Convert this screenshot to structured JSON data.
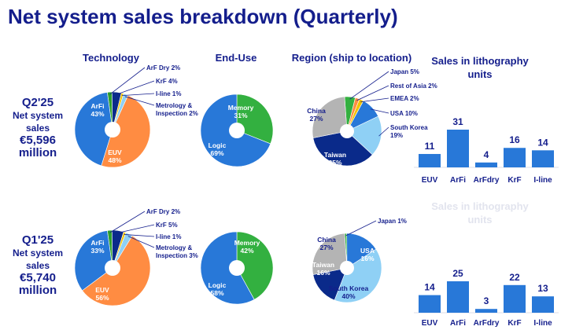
{
  "title": "Net system sales breakdown (Quarterly)",
  "column_headers": {
    "technology": "Technology",
    "end_use": "End-Use",
    "region": "Region (ship to location)",
    "litho_line1": "Sales in lithography",
    "litho_line2": "units"
  },
  "rows": [
    {
      "quarter": "Q2'25",
      "net_label": "Net system sales",
      "value": "€5,596 million"
    },
    {
      "quarter": "Q1'25",
      "net_label": "Net system sales",
      "value": "€5,740 million"
    }
  ],
  "faded_repeat_header": {
    "line1": "Sales in lithography",
    "line2": "units"
  },
  "colors": {
    "title": "#141e8c",
    "euv": "#ff8c42",
    "arfi": "#2878d8",
    "arf_dry": "#2ca02c",
    "krf": "#0a2a8a",
    "iline": "#f2c200",
    "metrology": "#8fd0f5",
    "memory": "#33b040",
    "logic": "#2878d8",
    "japan": "#33b040",
    "rest_of_asia": "#ff8c42",
    "emea": "#f2c200",
    "usa": "#2878d8",
    "south_korea": "#8fd0f5",
    "taiwan": "#0a2a8a",
    "china": "#b4b4b4",
    "bar": "#2878d8"
  },
  "chart_data": [
    {
      "type": "pie",
      "id": "tech_q2",
      "title": "Technology",
      "quarter": "Q2'25",
      "slices": [
        {
          "name": "ArF Dry",
          "value": 2,
          "label": "ArF Dry 2%",
          "color_key": "arf_dry",
          "inside": false
        },
        {
          "name": "KrF",
          "value": 4,
          "label": "KrF 4%",
          "color_key": "krf",
          "inside": false
        },
        {
          "name": "I-line",
          "value": 1,
          "label": "I-line 1%",
          "color_key": "iline",
          "inside": false
        },
        {
          "name": "Metrology & Inspection",
          "value": 2,
          "label": "Metrology &",
          "label2": "Inspection 2%",
          "color_key": "metrology",
          "inside": false
        },
        {
          "name": "EUV",
          "value": 48,
          "label": "EUV",
          "label2": "48%",
          "color_key": "euv",
          "inside": true
        },
        {
          "name": "ArFi",
          "value": 43,
          "label": "ArFi",
          "label2": "43%",
          "color_key": "arfi",
          "inside": true
        }
      ]
    },
    {
      "type": "pie",
      "id": "enduse_q2",
      "title": "End-Use",
      "quarter": "Q2'25",
      "slices": [
        {
          "name": "Memory",
          "value": 31,
          "label": "Memory",
          "label2": "31%",
          "color_key": "memory",
          "inside": true
        },
        {
          "name": "Logic",
          "value": 69,
          "label": "Logic",
          "label2": "69%",
          "color_key": "logic",
          "inside": true
        }
      ]
    },
    {
      "type": "pie",
      "id": "region_q2",
      "title": "Region (ship to location)",
      "quarter": "Q2'25",
      "slices": [
        {
          "name": "Japan",
          "value": 5,
          "label": "Japan 5%",
          "color_key": "japan",
          "inside": false
        },
        {
          "name": "Rest of Asia",
          "value": 2,
          "label": "Rest of Asia 2%",
          "color_key": "rest_of_asia",
          "inside": false
        },
        {
          "name": "EMEA",
          "value": 2,
          "label": "EMEA 2%",
          "color_key": "emea",
          "inside": false
        },
        {
          "name": "USA",
          "value": 10,
          "label": "USA 10%",
          "color_key": "usa",
          "inside": false
        },
        {
          "name": "South Korea",
          "value": 19,
          "label": "South Korea",
          "label2": "19%",
          "color_key": "south_korea",
          "inside": false
        },
        {
          "name": "Taiwan",
          "value": 35,
          "label": "Taiwan",
          "label2": "35%",
          "color_key": "taiwan",
          "inside": true
        },
        {
          "name": "China",
          "value": 27,
          "label": "China",
          "label2": "27%",
          "color_key": "china",
          "inside": true
        }
      ]
    },
    {
      "type": "bar",
      "id": "litho_q2",
      "title": "Sales in lithography units",
      "quarter": "Q2'25",
      "categories": [
        "EUV",
        "ArFi",
        "ArFdry",
        "KrF",
        "I-line"
      ],
      "values": [
        11,
        31,
        4,
        16,
        14
      ]
    },
    {
      "type": "pie",
      "id": "tech_q1",
      "title": "Technology",
      "quarter": "Q1'25",
      "slices": [
        {
          "name": "ArF Dry",
          "value": 2,
          "label": "ArF Dry 2%",
          "color_key": "arf_dry",
          "inside": false
        },
        {
          "name": "KrF",
          "value": 5,
          "label": "KrF 5%",
          "color_key": "krf",
          "inside": false
        },
        {
          "name": "I-line",
          "value": 1,
          "label": "I-line 1%",
          "color_key": "iline",
          "inside": false
        },
        {
          "name": "Metrology & Inspection",
          "value": 3,
          "label": "Metrology &",
          "label2": "Inspection 3%",
          "color_key": "metrology",
          "inside": false
        },
        {
          "name": "EUV",
          "value": 56,
          "label": "EUV",
          "label2": "56%",
          "color_key": "euv",
          "inside": true
        },
        {
          "name": "ArFi",
          "value": 33,
          "label": "ArFi",
          "label2": "33%",
          "color_key": "arfi",
          "inside": true
        }
      ]
    },
    {
      "type": "pie",
      "id": "enduse_q1",
      "title": "End-Use",
      "quarter": "Q1'25",
      "slices": [
        {
          "name": "Memory",
          "value": 42,
          "label": "Memory",
          "label2": "42%",
          "color_key": "memory",
          "inside": true
        },
        {
          "name": "Logic",
          "value": 58,
          "label": "Logic",
          "label2": "58%",
          "color_key": "logic",
          "inside": true
        }
      ]
    },
    {
      "type": "pie",
      "id": "region_q1",
      "title": "Region (ship to location)",
      "quarter": "Q1'25",
      "slices": [
        {
          "name": "Japan",
          "value": 1,
          "label": "Japan 1%",
          "color_key": "japan",
          "inside": false
        },
        {
          "name": "USA",
          "value": 16,
          "label": "USA",
          "label2": "16%",
          "color_key": "usa",
          "inside": true
        },
        {
          "name": "South Korea",
          "value": 40,
          "label": "South Korea",
          "label2": "40%",
          "color_key": "south_korea",
          "inside": true
        },
        {
          "name": "Taiwan",
          "value": 16,
          "label": "Taiwan",
          "label2": "16%",
          "color_key": "taiwan",
          "inside": true
        },
        {
          "name": "China",
          "value": 27,
          "label": "China",
          "label2": "27%",
          "color_key": "china",
          "inside": true
        }
      ]
    },
    {
      "type": "bar",
      "id": "litho_q1",
      "title": "Sales in lithography units",
      "quarter": "Q1'25",
      "categories": [
        "EUV",
        "ArFi",
        "ArFdry",
        "KrF",
        "I-line"
      ],
      "values": [
        14,
        25,
        3,
        22,
        13
      ]
    }
  ]
}
